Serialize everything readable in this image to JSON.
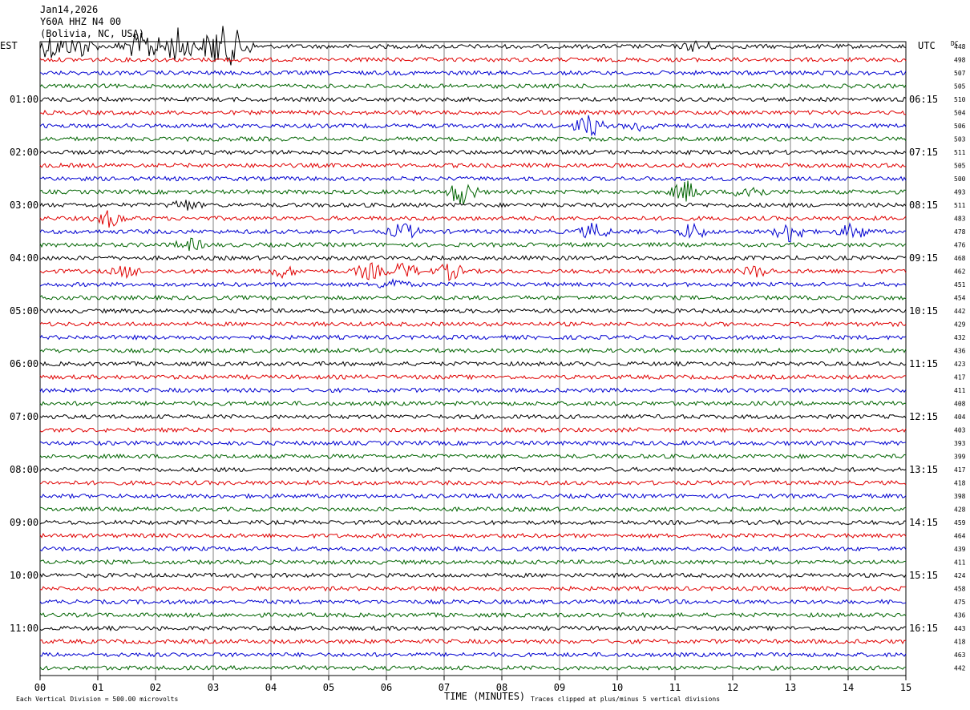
{
  "header": {
    "date": "Jan14,2026",
    "station": "Y60A HHZ N4 00",
    "location": "(Bolivia, NC, USA)"
  },
  "left_tz": "EST",
  "right_tz": "UTC",
  "dc_header": "DC",
  "footer": {
    "division": "Each Vertical Division =  500.00 microvolts",
    "clip": "Traces clipped at plus/minus 5 vertical divisions",
    "xlabel": "TIME (MINUTES)"
  },
  "chart_data": {
    "type": "line",
    "title": "Jan14,2026",
    "xlabel": "TIME (MINUTES)",
    "xlim": [
      0,
      15
    ],
    "x_ticks": [
      "00",
      "01",
      "02",
      "03",
      "04",
      "05",
      "06",
      "07",
      "08",
      "09",
      "10",
      "11",
      "12",
      "13",
      "14",
      "15"
    ],
    "grid": "vertical",
    "rows": 48,
    "row_minutes": 15,
    "trace_colors": [
      "#000000",
      "#e00000",
      "#0000d0",
      "#006400"
    ],
    "left_hour_labels": [
      "01:00",
      "02:00",
      "03:00",
      "04:00",
      "05:00",
      "06:00",
      "07:00",
      "08:00",
      "09:00",
      "10:00",
      "11:00"
    ],
    "right_hour_labels": [
      "06:15",
      "07:15",
      "08:15",
      "09:15",
      "10:15",
      "11:15",
      "12:15",
      "13:15",
      "14:15",
      "15:15",
      "16:15"
    ],
    "dc_offsets": [
      448,
      498,
      507,
      505,
      510,
      504,
      506,
      503,
      511,
      505,
      500,
      493,
      511,
      483,
      478,
      476,
      468,
      462,
      451,
      454,
      442,
      429,
      432,
      436,
      423,
      417,
      411,
      408,
      404,
      403,
      393,
      399,
      417,
      418,
      398,
      428,
      459,
      464,
      439,
      411,
      424,
      458,
      475,
      436,
      443,
      418,
      463,
      442
    ],
    "events": [
      {
        "row": 0,
        "minute": 0.2,
        "amp": 5
      },
      {
        "row": 0,
        "minute": 0.7,
        "amp": 4
      },
      {
        "row": 0,
        "minute": 1.6,
        "amp": 3
      },
      {
        "row": 0,
        "minute": 1.9,
        "amp": 5
      },
      {
        "row": 0,
        "minute": 2.4,
        "amp": 7
      },
      {
        "row": 0,
        "minute": 3.05,
        "amp": 8
      },
      {
        "row": 0,
        "minute": 3.4,
        "amp": 6
      },
      {
        "row": 0,
        "minute": 11.4,
        "amp": 2
      },
      {
        "row": 6,
        "minute": 9.5,
        "amp": 4
      },
      {
        "row": 6,
        "minute": 10.4,
        "amp": 2
      },
      {
        "row": 11,
        "minute": 7.3,
        "amp": 5
      },
      {
        "row": 11,
        "minute": 11.2,
        "amp": 4
      },
      {
        "row": 11,
        "minute": 12.3,
        "amp": 3
      },
      {
        "row": 12,
        "minute": 2.5,
        "amp": 2
      },
      {
        "row": 13,
        "minute": 1.2,
        "amp": 3
      },
      {
        "row": 14,
        "minute": 6.3,
        "amp": 3
      },
      {
        "row": 14,
        "minute": 9.6,
        "amp": 3
      },
      {
        "row": 14,
        "minute": 11.3,
        "amp": 3
      },
      {
        "row": 14,
        "minute": 13.0,
        "amp": 4
      },
      {
        "row": 14,
        "minute": 14.1,
        "amp": 3
      },
      {
        "row": 15,
        "minute": 2.6,
        "amp": 2
      },
      {
        "row": 17,
        "minute": 1.5,
        "amp": 2
      },
      {
        "row": 17,
        "minute": 4.2,
        "amp": 2
      },
      {
        "row": 17,
        "minute": 5.7,
        "amp": 3
      },
      {
        "row": 17,
        "minute": 6.3,
        "amp": 3
      },
      {
        "row": 17,
        "minute": 7.1,
        "amp": 3
      },
      {
        "row": 17,
        "minute": 12.4,
        "amp": 2
      },
      {
        "row": 18,
        "minute": 6.1,
        "amp": 2
      }
    ]
  }
}
